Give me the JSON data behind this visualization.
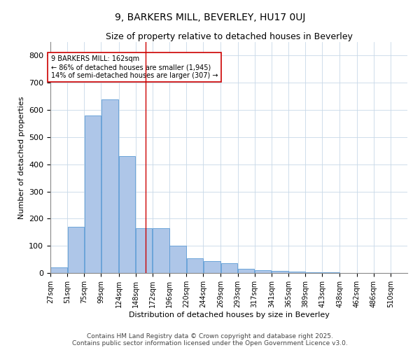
{
  "title": "9, BARKERS MILL, BEVERLEY, HU17 0UJ",
  "subtitle": "Size of property relative to detached houses in Beverley",
  "xlabel": "Distribution of detached houses by size in Beverley",
  "ylabel": "Number of detached properties",
  "footnote1": "Contains HM Land Registry data © Crown copyright and database right 2025.",
  "footnote2": "Contains public sector information licensed under the Open Government Licence v3.0.",
  "annotation_line1": "9 BARKERS MILL: 162sqm",
  "annotation_line2": "← 86% of detached houses are smaller (1,945)",
  "annotation_line3": "14% of semi-detached houses are larger (307) →",
  "bar_left_edges": [
    27,
    51,
    75,
    99,
    124,
    148,
    172,
    196,
    220,
    244,
    269,
    293,
    317,
    341,
    365,
    389,
    413,
    438,
    462,
    486
  ],
  "bar_widths": [
    24,
    24,
    24,
    25,
    24,
    24,
    24,
    24,
    24,
    25,
    24,
    24,
    24,
    24,
    24,
    24,
    25,
    24,
    24,
    24
  ],
  "bar_heights": [
    20,
    170,
    580,
    640,
    430,
    165,
    165,
    100,
    55,
    45,
    35,
    15,
    10,
    8,
    5,
    3,
    2,
    1,
    0,
    1
  ],
  "tick_labels": [
    "27sqm",
    "51sqm",
    "75sqm",
    "99sqm",
    "124sqm",
    "148sqm",
    "172sqm",
    "196sqm",
    "220sqm",
    "244sqm",
    "269sqm",
    "293sqm",
    "317sqm",
    "341sqm",
    "365sqm",
    "389sqm",
    "413sqm",
    "438sqm",
    "462sqm",
    "486sqm",
    "510sqm"
  ],
  "bar_color": "#aec6e8",
  "bar_edge_color": "#5b9bd5",
  "reference_line_x": 162,
  "reference_line_color": "#cc0000",
  "annotation_box_color": "#cc0000",
  "background_color": "#ffffff",
  "grid_color": "#c8d8e8",
  "ylim": [
    0,
    850
  ],
  "yticks": [
    0,
    100,
    200,
    300,
    400,
    500,
    600,
    700,
    800
  ],
  "title_fontsize": 10,
  "subtitle_fontsize": 9,
  "axis_label_fontsize": 8,
  "tick_fontsize": 7,
  "annotation_fontsize": 7,
  "footnote_fontsize": 6.5
}
